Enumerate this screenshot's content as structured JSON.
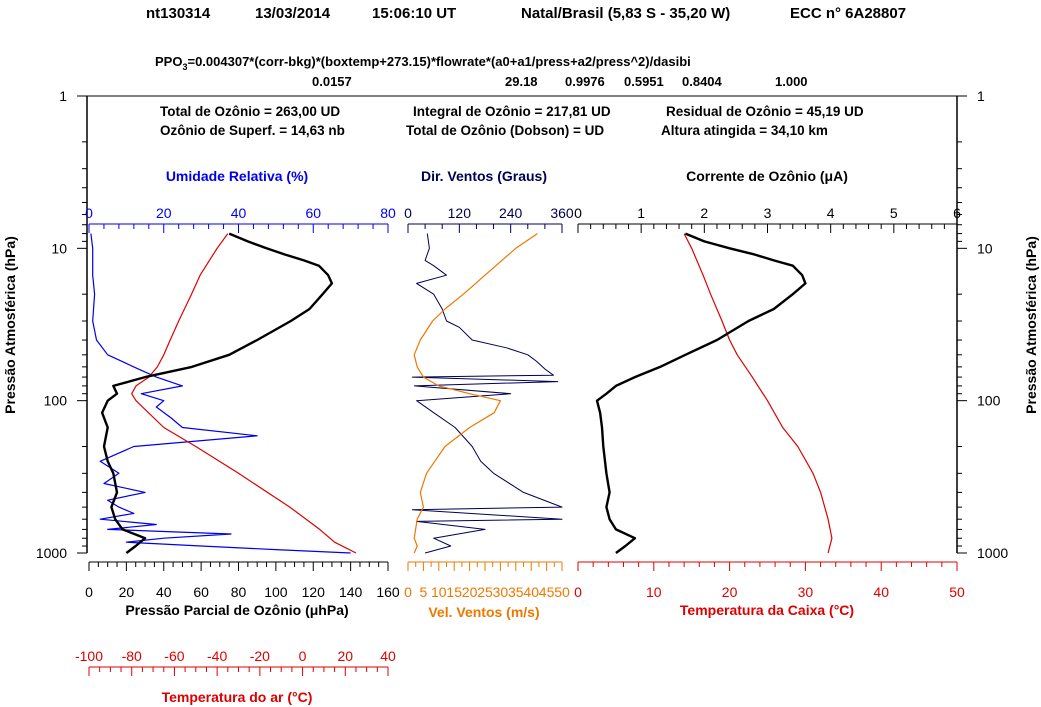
{
  "header": {
    "id": "nt130314",
    "date": "13/03/2014",
    "time": "15:06:10 UT",
    "station": "Natal/Brasil (5,83 S - 35,20 W)",
    "sonde": "ECC  n° 6A28807"
  },
  "formula": {
    "lhs": "PPO",
    "sub": "3",
    "rhs": "=0.004307*(corr-bkg)*(boxtemp+273.15)*flowrate*(a0+a1/press+a2/press^2)/dasibi",
    "val_bkg": "0.0157",
    "val_flow": "29.18",
    "val_a0": "0.9976",
    "val_a1": "0.5951",
    "val_a2": "0.8404",
    "val_dasibi": "1.000"
  },
  "summary": {
    "total_ozone": "Total de Ozônio = 263,00  UD",
    "integral_ozone": "Integral de Ozônio = 217,81  UD",
    "residual_ozone": "Residual  de Ozônio = 45,19  UD",
    "surface_ozone": "Ozônio de Superf. = 14,63  nb",
    "dobson_total": "Total de Ozônio (Dobson) =  UD",
    "altitude": "Altura atingida = 34,10 km"
  },
  "colors": {
    "black": "#000000",
    "humidity": "#0000ee",
    "temperature": "#dd0000",
    "wind_speed": "#ee7700",
    "wind_dir": "#000055"
  },
  "chart_data": {
    "type": "line",
    "y_axis": {
      "label": "Pressão Atmosférica (hPa)",
      "scale": "log",
      "range": [
        1000,
        1
      ],
      "ticks": [
        "1",
        "10",
        "100",
        "1000"
      ]
    },
    "panels": [
      {
        "id": "left",
        "top_axis": {
          "label": "Umidade Relativa (%)",
          "range": [
            0,
            80
          ],
          "ticks": [
            "0",
            "20",
            "40",
            "60",
            "80"
          ]
        },
        "bottom_axis": {
          "label": "Pressão Parcial de Ozônio (μhPa)",
          "range": [
            0,
            160
          ],
          "ticks": [
            "0",
            "20",
            "40",
            "60",
            "80",
            "100",
            "120",
            "140",
            "160"
          ]
        },
        "extra_axis": {
          "label": "Temperatura do ar (°C)",
          "range": [
            -100,
            40
          ],
          "ticks": [
            "-100",
            "-80",
            "-60",
            "-40",
            "-20",
            "0",
            "20",
            "40"
          ]
        },
        "series": {
          "ozone_partial_pressure": {
            "p": [
              1000,
              900,
              800,
              700,
              600,
              500,
              400,
              300,
              250,
              200,
              150,
              120,
              100,
              90,
              80,
              70,
              60,
              50,
              40,
              30,
              25,
              20,
              17,
              15,
              13,
              12,
              11,
              10,
              9,
              8
            ],
            "v": [
              20,
              25,
              30,
              18,
              14,
              12,
              15,
              13,
              10,
              8,
              10,
              7,
              10,
              15,
              13,
              30,
              55,
              75,
              90,
              108,
              118,
              125,
              130,
              128,
              123,
              115,
              105,
              95,
              85,
              75
            ]
          },
          "relative_humidity": {
            "p": [
              1000,
              950,
              900,
              850,
              800,
              750,
              700,
              650,
              600,
              550,
              500,
              450,
              400,
              350,
              300,
              250,
              200,
              170,
              150,
              130,
              110,
              100,
              90,
              80,
              70,
              60,
              50,
              40,
              30,
              20,
              15,
              10,
              8
            ],
            "v": [
              70,
              50,
              30,
              10,
              20,
              38,
              5,
              18,
              3,
              12,
              8,
              5,
              15,
              4,
              8,
              3,
              12,
              45,
              25,
              22,
              18,
              20,
              14,
              25,
              18,
              12,
              5,
              2,
              1,
              1.5,
              1,
              1,
              0.5
            ]
          },
          "air_temperature": {
            "p": [
              1000,
              850,
              700,
              500,
              300,
              200,
              150,
              100,
              90,
              80,
              70,
              60,
              50,
              40,
              30,
              20,
              15,
              10,
              8
            ],
            "v": [
              25,
              15,
              8,
              -6,
              -30,
              -50,
              -65,
              -78,
              -80,
              -78,
              -72,
              -68,
              -65,
              -62,
              -58,
              -52,
              -48,
              -40,
              -35
            ]
          }
        }
      },
      {
        "id": "middle",
        "top_axis": {
          "label": "Dir. Ventos (Graus)",
          "range": [
            0,
            360
          ],
          "ticks": [
            "0",
            "120",
            "240",
            "360"
          ]
        },
        "bottom_axis": {
          "label": "Vel. Ventos (m/s)",
          "range": [
            0,
            50
          ],
          "ticks": [
            "0",
            "5",
            "10",
            "15",
            "20",
            "25",
            "30",
            "35",
            "40",
            "45",
            "50"
          ]
        },
        "series": {
          "wind_speed": {
            "p": [
              1000,
              900,
              800,
              600,
              500,
              400,
              300,
              200,
              150,
              120,
              100,
              90,
              80,
              70,
              60,
              50,
              40,
              30,
              25,
              20,
              15,
              10,
              8
            ],
            "v": [
              2,
              3,
              2,
              3,
              5,
              4,
              6,
              12,
              20,
              28,
              30,
              20,
              10,
              5,
              3,
              2,
              4,
              8,
              12,
              18,
              25,
              35,
              42
            ]
          },
          "wind_direction": {
            "p": [
              1000,
              900,
              800,
              700,
              620,
              600,
              520,
              500,
              400,
              300,
              250,
              200,
              150,
              120,
              100,
              90,
              80,
              75,
              70,
              68,
              62,
              55,
              50,
              45,
              40,
              33,
              30,
              25,
              20,
              17,
              15,
              13,
              12,
              10,
              8
            ],
            "v": [
              40,
              100,
              60,
              180,
              20,
              360,
              10,
              360,
              270,
              200,
              170,
              150,
              110,
              60,
              20,
              240,
              15,
              350,
              10,
              340,
              320,
              300,
              280,
              230,
              150,
              120,
              90,
              80,
              60,
              20,
              90,
              60,
              40,
              50,
              45
            ]
          }
        }
      },
      {
        "id": "right",
        "top_axis": {
          "label": "Corrente de Ozônio (μA)",
          "range": [
            0,
            6
          ],
          "ticks": [
            "0",
            "1",
            "2",
            "3",
            "4",
            "5",
            "6"
          ]
        },
        "bottom_axis": {
          "label": "Temperatura da Caixa (°C)",
          "range": [
            0,
            50
          ],
          "ticks": [
            "0",
            "10",
            "20",
            "30",
            "40",
            "50"
          ]
        },
        "series": {
          "ozone_current": {
            "p": [
              1000,
              900,
              800,
              700,
              600,
              500,
              400,
              300,
              200,
              150,
              120,
              100,
              90,
              80,
              70,
              60,
              50,
              40,
              30,
              25,
              20,
              17,
              15,
              13,
              12,
              11,
              10,
              9,
              8
            ],
            "v": [
              0.6,
              0.75,
              0.9,
              0.6,
              0.5,
              0.45,
              0.5,
              0.45,
              0.4,
              0.38,
              0.35,
              0.3,
              0.45,
              0.6,
              0.9,
              1.3,
              1.7,
              2.2,
              2.7,
              3.1,
              3.4,
              3.6,
              3.55,
              3.4,
              3.1,
              2.8,
              2.4,
              2.0,
              1.7
            ]
          },
          "box_temperature": {
            "p": [
              1000,
              800,
              600,
              400,
              300,
              200,
              150,
              100,
              70,
              50,
              40,
              30,
              20,
              15,
              10,
              8
            ],
            "v": [
              33,
              33.5,
              33,
              32,
              31,
              29,
              27,
              25,
              23,
              21,
              20,
              19,
              17.5,
              16.5,
              15,
              14
            ]
          }
        }
      }
    ]
  }
}
